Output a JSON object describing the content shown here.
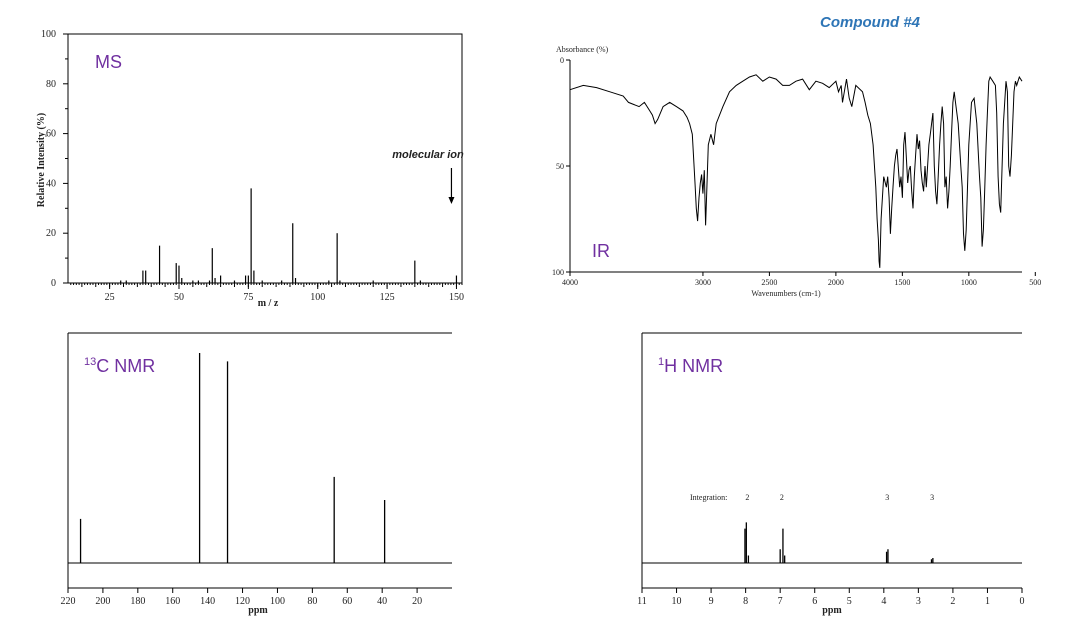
{
  "page": {
    "title": "Compound #4"
  },
  "chart_data": [
    {
      "id": "ms",
      "type": "bar",
      "title": "MS",
      "xlabel": "m / z",
      "ylabel": "Relative Intensity (%)",
      "xlim": [
        10,
        152
      ],
      "ylim": [
        0,
        100
      ],
      "xticks": [
        25,
        50,
        75,
        100,
        125,
        150
      ],
      "yticks": [
        0,
        20,
        40,
        60,
        80,
        100
      ],
      "annotation": {
        "text": "molecular ion",
        "x": 150
      },
      "peaks": [
        [
          29,
          1
        ],
        [
          31,
          1
        ],
        [
          37,
          5
        ],
        [
          38,
          5
        ],
        [
          43,
          15
        ],
        [
          49,
          8
        ],
        [
          50,
          7
        ],
        [
          51,
          2
        ],
        [
          55,
          1
        ],
        [
          57,
          1
        ],
        [
          61,
          1
        ],
        [
          62,
          14
        ],
        [
          63,
          2
        ],
        [
          65,
          3
        ],
        [
          70,
          1
        ],
        [
          74,
          3
        ],
        [
          75,
          3
        ],
        [
          76,
          38
        ],
        [
          77,
          5
        ],
        [
          80,
          1
        ],
        [
          87,
          1
        ],
        [
          91,
          24
        ],
        [
          92,
          2
        ],
        [
          104,
          1
        ],
        [
          107,
          20
        ],
        [
          108,
          1
        ],
        [
          120,
          1
        ],
        [
          135,
          9
        ],
        [
          137,
          1
        ],
        [
          150,
          3
        ]
      ]
    },
    {
      "id": "ir",
      "type": "line",
      "title": "IR",
      "xlabel": "Wavenumbers (cm-1)",
      "ylabel": "Absorbance (%)",
      "xlim": [
        4000,
        600
      ],
      "ylim": [
        0,
        100
      ],
      "xticks": [
        4000,
        3000,
        2500,
        2000,
        1500,
        1000,
        500
      ],
      "yticks": [
        0,
        50,
        100
      ],
      "points": [
        [
          4000,
          14
        ],
        [
          3900,
          12
        ],
        [
          3800,
          13
        ],
        [
          3700,
          15
        ],
        [
          3600,
          17
        ],
        [
          3560,
          20
        ],
        [
          3520,
          21
        ],
        [
          3480,
          22
        ],
        [
          3440,
          20
        ],
        [
          3400,
          24
        ],
        [
          3380,
          26
        ],
        [
          3360,
          30
        ],
        [
          3340,
          28
        ],
        [
          3300,
          22
        ],
        [
          3250,
          20
        ],
        [
          3200,
          22
        ],
        [
          3150,
          24
        ],
        [
          3120,
          27
        ],
        [
          3100,
          30
        ],
        [
          3080,
          35
        ],
        [
          3060,
          58
        ],
        [
          3050,
          70
        ],
        [
          3040,
          76
        ],
        [
          3030,
          65
        ],
        [
          3020,
          58
        ],
        [
          3010,
          54
        ],
        [
          3000,
          63
        ],
        [
          2990,
          52
        ],
        [
          2980,
          78
        ],
        [
          2970,
          60
        ],
        [
          2960,
          40
        ],
        [
          2940,
          35
        ],
        [
          2920,
          40
        ],
        [
          2900,
          30
        ],
        [
          2850,
          22
        ],
        [
          2800,
          15
        ],
        [
          2750,
          12
        ],
        [
          2700,
          10
        ],
        [
          2650,
          8
        ],
        [
          2600,
          7
        ],
        [
          2550,
          10
        ],
        [
          2500,
          8
        ],
        [
          2450,
          9
        ],
        [
          2400,
          12
        ],
        [
          2350,
          12
        ],
        [
          2300,
          10
        ],
        [
          2250,
          9
        ],
        [
          2200,
          14
        ],
        [
          2150,
          10
        ],
        [
          2100,
          11
        ],
        [
          2050,
          13
        ],
        [
          2000,
          10
        ],
        [
          1980,
          15
        ],
        [
          1960,
          12
        ],
        [
          1950,
          20
        ],
        [
          1920,
          9
        ],
        [
          1900,
          18
        ],
        [
          1880,
          22
        ],
        [
          1850,
          12
        ],
        [
          1800,
          15
        ],
        [
          1780,
          20
        ],
        [
          1760,
          26
        ],
        [
          1740,
          30
        ],
        [
          1720,
          40
        ],
        [
          1700,
          60
        ],
        [
          1690,
          75
        ],
        [
          1680,
          85
        ],
        [
          1675,
          95
        ],
        [
          1670,
          98
        ],
        [
          1660,
          75
        ],
        [
          1650,
          65
        ],
        [
          1640,
          55
        ],
        [
          1620,
          60
        ],
        [
          1610,
          55
        ],
        [
          1600,
          65
        ],
        [
          1590,
          82
        ],
        [
          1580,
          70
        ],
        [
          1570,
          60
        ],
        [
          1560,
          50
        ],
        [
          1550,
          45
        ],
        [
          1540,
          42
        ],
        [
          1520,
          60
        ],
        [
          1510,
          55
        ],
        [
          1500,
          65
        ],
        [
          1490,
          40
        ],
        [
          1480,
          34
        ],
        [
          1460,
          58
        ],
        [
          1450,
          52
        ],
        [
          1440,
          50
        ],
        [
          1430,
          62
        ],
        [
          1420,
          70
        ],
        [
          1410,
          55
        ],
        [
          1400,
          45
        ],
        [
          1390,
          35
        ],
        [
          1380,
          42
        ],
        [
          1370,
          38
        ],
        [
          1360,
          52
        ],
        [
          1350,
          58
        ],
        [
          1340,
          62
        ],
        [
          1330,
          50
        ],
        [
          1320,
          60
        ],
        [
          1300,
          40
        ],
        [
          1290,
          35
        ],
        [
          1280,
          30
        ],
        [
          1270,
          25
        ],
        [
          1260,
          50
        ],
        [
          1250,
          62
        ],
        [
          1240,
          68
        ],
        [
          1230,
          55
        ],
        [
          1220,
          40
        ],
        [
          1210,
          30
        ],
        [
          1200,
          22
        ],
        [
          1190,
          30
        ],
        [
          1180,
          60
        ],
        [
          1170,
          55
        ],
        [
          1160,
          70
        ],
        [
          1150,
          62
        ],
        [
          1140,
          50
        ],
        [
          1130,
          35
        ],
        [
          1120,
          20
        ],
        [
          1110,
          15
        ],
        [
          1100,
          20
        ],
        [
          1080,
          30
        ],
        [
          1060,
          50
        ],
        [
          1050,
          60
        ],
        [
          1040,
          82
        ],
        [
          1030,
          90
        ],
        [
          1020,
          80
        ],
        [
          1010,
          60
        ],
        [
          1000,
          40
        ],
        [
          980,
          20
        ],
        [
          960,
          18
        ],
        [
          940,
          30
        ],
        [
          920,
          55
        ],
        [
          910,
          65
        ],
        [
          900,
          88
        ],
        [
          890,
          80
        ],
        [
          880,
          60
        ],
        [
          870,
          40
        ],
        [
          860,
          25
        ],
        [
          850,
          10
        ],
        [
          840,
          8
        ],
        [
          820,
          10
        ],
        [
          800,
          12
        ],
        [
          790,
          25
        ],
        [
          780,
          55
        ],
        [
          770,
          68
        ],
        [
          760,
          72
        ],
        [
          750,
          50
        ],
        [
          740,
          30
        ],
        [
          730,
          20
        ],
        [
          720,
          10
        ],
        [
          710,
          15
        ],
        [
          700,
          50
        ],
        [
          690,
          55
        ],
        [
          680,
          45
        ],
        [
          670,
          30
        ],
        [
          660,
          15
        ],
        [
          650,
          10
        ],
        [
          640,
          12
        ],
        [
          620,
          8
        ],
        [
          600,
          10
        ]
      ]
    },
    {
      "id": "c13",
      "type": "bar",
      "title": "13C NMR",
      "title_main": "13",
      "title_rest": "C NMR",
      "xlabel": "ppm",
      "xlim": [
        220,
        0
      ],
      "ylim": [
        0,
        100
      ],
      "xticks": [
        220,
        200,
        180,
        160,
        140,
        120,
        100,
        80,
        60,
        40,
        20
      ],
      "peaks": [
        [
          212.8,
          21
        ],
        [
          144.6,
          100
        ],
        [
          128.6,
          96
        ],
        [
          67.5,
          41
        ],
        [
          38.6,
          30
        ]
      ]
    },
    {
      "id": "h1",
      "type": "bar",
      "title": "1H NMR",
      "title_main": "1",
      "title_rest": "H NMR",
      "xlabel": "ppm",
      "xlim": [
        11,
        0
      ],
      "ylim": [
        0,
        100
      ],
      "xticks": [
        11,
        10,
        9,
        8,
        7,
        6,
        5,
        4,
        3,
        2,
        1,
        0
      ],
      "integration_label": "Integration:",
      "integrations": [
        [
          "2",
          7.95
        ],
        [
          "2",
          6.95
        ],
        [
          "3",
          3.9
        ],
        [
          "3",
          2.6
        ]
      ],
      "peaks": [
        [
          8.02,
          55
        ],
        [
          7.98,
          65
        ],
        [
          7.92,
          12
        ],
        [
          7.0,
          22
        ],
        [
          6.92,
          55
        ],
        [
          6.87,
          12
        ],
        [
          3.92,
          18
        ],
        [
          3.88,
          22
        ],
        [
          2.62,
          6
        ],
        [
          2.58,
          8
        ]
      ]
    }
  ]
}
